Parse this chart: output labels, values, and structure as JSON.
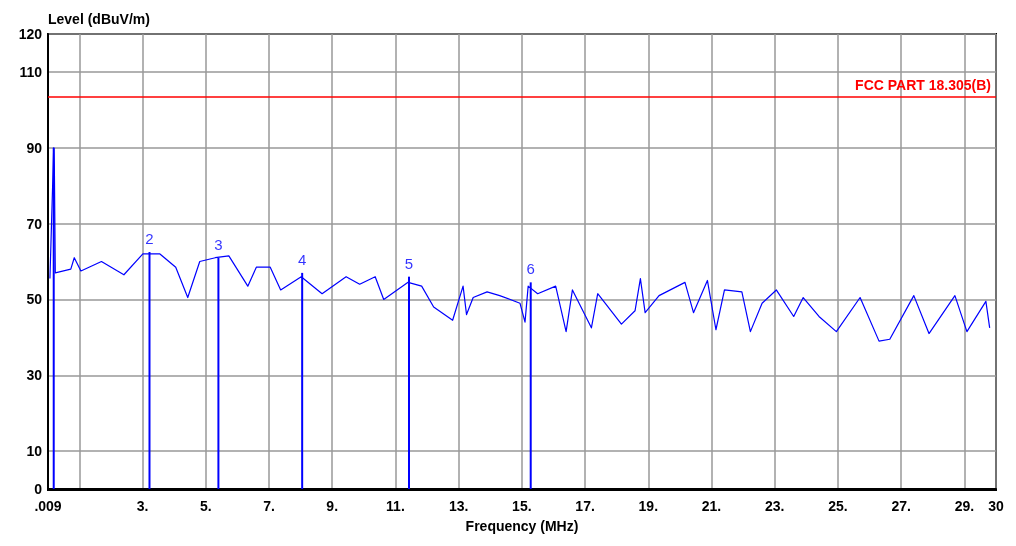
{
  "chart_data": {
    "type": "line",
    "xlabel": "Frequency (MHz)",
    "ylabel": "Level (dBuV/m)",
    "xlim": [
      0.009,
      30
    ],
    "xticks": [
      {
        "value": 0.009,
        "label": ".009"
      },
      {
        "value": 1,
        "label": null
      },
      {
        "value": 3,
        "label": "3."
      },
      {
        "value": 5,
        "label": "5."
      },
      {
        "value": 7,
        "label": "7."
      },
      {
        "value": 9,
        "label": "9."
      },
      {
        "value": 11,
        "label": "11."
      },
      {
        "value": 13,
        "label": "13."
      },
      {
        "value": 15,
        "label": "15."
      },
      {
        "value": 17,
        "label": "17."
      },
      {
        "value": 19,
        "label": "19."
      },
      {
        "value": 21,
        "label": "21."
      },
      {
        "value": 23,
        "label": "23."
      },
      {
        "value": 25,
        "label": "25."
      },
      {
        "value": 27,
        "label": "27."
      },
      {
        "value": 29,
        "label": "29."
      },
      {
        "value": 30,
        "label": "30"
      }
    ],
    "ylim": [
      0,
      120
    ],
    "yticks": [
      0,
      10,
      30,
      50,
      70,
      90,
      110,
      120
    ],
    "grid": true,
    "series": [
      {
        "color": "#0000ff",
        "x": [
          0.07,
          0.19,
          0.21,
          0.24,
          0.73,
          0.84,
          1.05,
          1.7,
          2.41,
          3.01,
          3.55,
          4.05,
          4.43,
          4.81,
          5.3,
          5.73,
          6.33,
          6.6,
          7.04,
          7.37,
          8.02,
          8.68,
          9.44,
          9.87,
          10.36,
          10.63,
          11.4,
          11.83,
          12.21,
          12.81,
          13.14,
          13.25,
          13.46,
          13.9,
          14.3,
          14.94,
          15.1,
          15.2,
          15.5,
          16.07,
          16.4,
          16.6,
          17.2,
          17.4,
          18.15,
          18.58,
          18.75,
          18.9,
          19.34,
          20.16,
          20.43,
          20.87,
          21.14,
          21.41,
          21.96,
          22.23,
          22.6,
          23.05,
          23.6,
          23.9,
          24.4,
          24.95,
          25.7,
          26.3,
          26.64,
          27.4,
          27.88,
          28.7,
          29.08,
          29.68,
          29.8
        ],
        "values": [
          55.5,
          90,
          85,
          57,
          58,
          61,
          57.5,
          60,
          56.5,
          62,
          62,
          58.5,
          50.5,
          60,
          61,
          61.5,
          53.5,
          58.5,
          58.5,
          52.5,
          56,
          51.5,
          56,
          54,
          56,
          50,
          54.5,
          53.5,
          48,
          44.5,
          53.5,
          46,
          50.5,
          52,
          51,
          49,
          44,
          53.5,
          51.5,
          53.5,
          41.5,
          52.5,
          42.5,
          51.5,
          43.5,
          47,
          55.5,
          46.5,
          51,
          54.5,
          46.5,
          55,
          42,
          52.5,
          52,
          41.5,
          49,
          52.5,
          45.5,
          50.5,
          45.5,
          41.5,
          50.5,
          39,
          39.5,
          51,
          41,
          51,
          41.5,
          49.5,
          42.5
        ]
      },
      {
        "type": "bar",
        "color": "#0000ff",
        "x": [
          0.19,
          3.22,
          5.4,
          8.05,
          11.43,
          15.28
        ],
        "values": [
          90,
          62.5,
          61,
          57,
          56,
          54.5
        ]
      }
    ],
    "annotations": [
      {
        "text": "2",
        "x": 3.22,
        "y": 62.5
      },
      {
        "text": "3",
        "x": 5.4,
        "y": 61
      },
      {
        "text": "4",
        "x": 8.05,
        "y": 57
      },
      {
        "text": "5",
        "x": 11.43,
        "y": 56
      },
      {
        "text": "6",
        "x": 15.28,
        "y": 54.5
      }
    ],
    "ref_lines": [
      {
        "axis": "y",
        "value": 103.5,
        "label": "FCC PART 18.305(B)",
        "color": "#ff0000"
      }
    ]
  }
}
